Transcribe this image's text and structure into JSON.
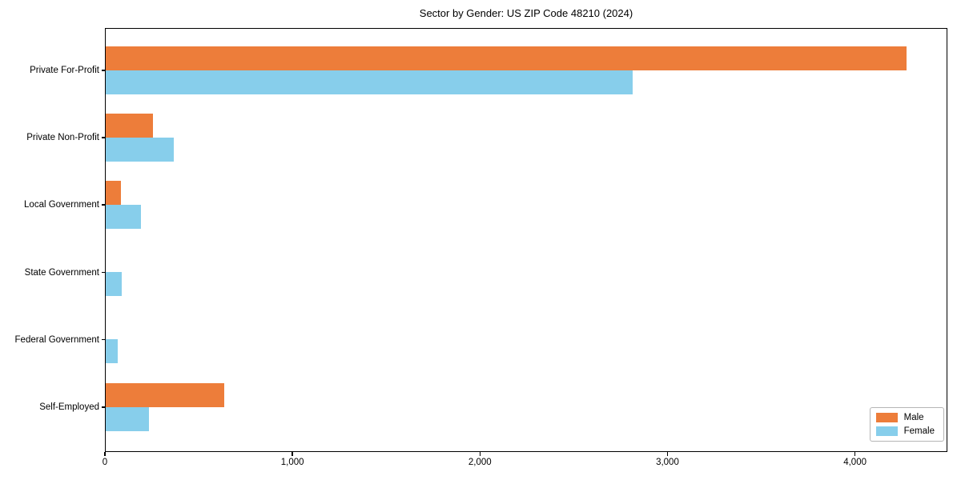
{
  "chart_data": {
    "type": "bar",
    "orientation": "horizontal",
    "title": "Sector by Gender: US ZIP Code 48210 (2024)",
    "categories": [
      "Private For-Profit",
      "Private Non-Profit",
      "Local Government",
      "State Government",
      "Federal Government",
      "Self-Employed"
    ],
    "series": [
      {
        "name": "Male",
        "color": "#ed7d3a",
        "values": [
          4270,
          250,
          80,
          0,
          0,
          630
        ]
      },
      {
        "name": "Female",
        "color": "#87ceeb",
        "values": [
          2810,
          365,
          190,
          85,
          65,
          230
        ]
      }
    ],
    "xlim": [
      0,
      4480
    ],
    "xticks": [
      0,
      1000,
      2000,
      3000,
      4000
    ],
    "xtick_labels": [
      "0",
      "1,000",
      "2,000",
      "3,000",
      "4,000"
    ],
    "grid": false,
    "legend_position": "lower-right",
    "plot_border_color": "#000000",
    "background_color": "#ffffff"
  }
}
